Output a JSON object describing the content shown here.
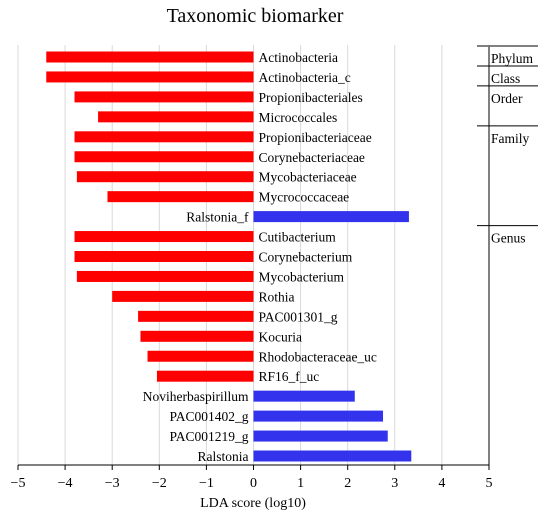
{
  "chart_data": {
    "type": "bar",
    "title": "Taxonomic biomarker",
    "xlabel": "LDA score (log10)",
    "ylabel": "",
    "xlim": [
      -5,
      5
    ],
    "xticks": [
      -5,
      -4,
      -3,
      -2,
      -1,
      0,
      1,
      2,
      3,
      4,
      5
    ],
    "grid": true,
    "colors": {
      "negative": "#ff0000",
      "positive": "#3333ee"
    },
    "bars": [
      {
        "label": "Actinobacteria",
        "value": -4.4
      },
      {
        "label": "Actinobacteria_c",
        "value": -4.4
      },
      {
        "label": "Propionibacteriales",
        "value": -3.8
      },
      {
        "label": "Micrococcales",
        "value": -3.3
      },
      {
        "label": "Propionibacteriaceae",
        "value": -3.8
      },
      {
        "label": "Corynebacteriaceae",
        "value": -3.8
      },
      {
        "label": "Mycobacteriaceae",
        "value": -3.75
      },
      {
        "label": "Mycrococcaceae",
        "value": -3.1
      },
      {
        "label": "Ralstonia_f",
        "value": 3.3
      },
      {
        "label": "Cutibacterium",
        "value": -3.8
      },
      {
        "label": "Corynebacterium",
        "value": -3.8
      },
      {
        "label": "Mycobacterium",
        "value": -3.75
      },
      {
        "label": "Rothia",
        "value": -3.0
      },
      {
        "label": "PAC001301_g",
        "value": -2.45
      },
      {
        "label": "Kocuria",
        "value": -2.4
      },
      {
        "label": "Rhodobacteraceae_uc",
        "value": -2.25
      },
      {
        "label": "RF16_f_uc",
        "value": -2.05
      },
      {
        "label": "Noviherbaspirillum",
        "value": 2.15
      },
      {
        "label": "PAC001402_g",
        "value": 2.75
      },
      {
        "label": "PAC001219_g",
        "value": 2.85
      },
      {
        "label": "Ralstonia",
        "value": 3.35
      }
    ],
    "ranks": [
      {
        "label": "Phylum",
        "first": 0,
        "last": 0
      },
      {
        "label": "Class",
        "first": 1,
        "last": 1
      },
      {
        "label": "Order",
        "first": 2,
        "last": 3
      },
      {
        "label": "Family",
        "first": 4,
        "last": 8
      },
      {
        "label": "Genus",
        "first": 9,
        "last": 20
      }
    ]
  }
}
